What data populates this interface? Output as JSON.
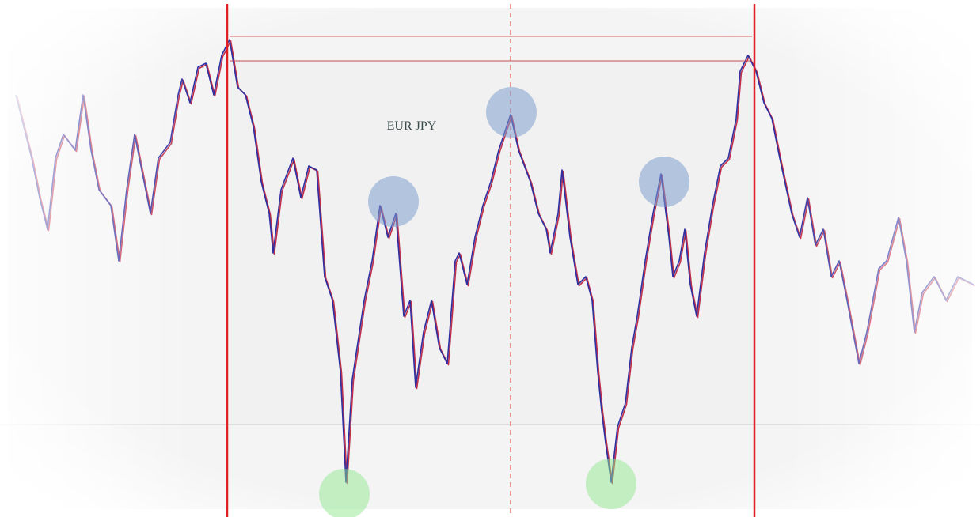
{
  "title": "EUR JPY"
}
